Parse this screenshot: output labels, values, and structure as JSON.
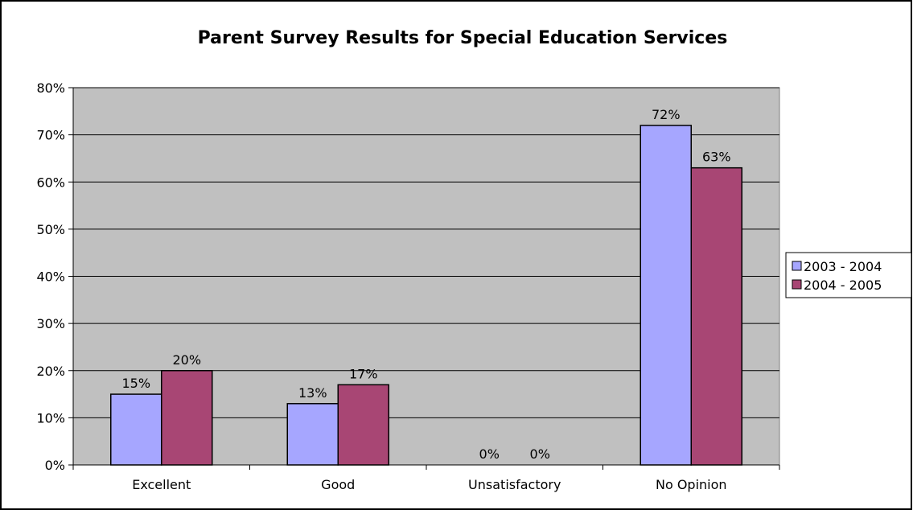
{
  "chart_data": {
    "type": "bar",
    "title": "Parent Survey Results for Special Education Services",
    "xlabel": "",
    "ylabel": "",
    "categories": [
      "Excellent",
      "Good",
      "Unsatisfactory",
      "No Opinion"
    ],
    "series": [
      {
        "name": "2003 - 2004",
        "values": [
          15,
          13,
          0,
          72
        ],
        "color": "#a6a6ff",
        "labels": [
          "15%",
          "13%",
          "0%",
          "72%"
        ]
      },
      {
        "name": "2004 - 2005",
        "values": [
          20,
          17,
          0,
          63
        ],
        "color": "#a84674",
        "labels": [
          "20%",
          "17%",
          "0%",
          "63%"
        ]
      }
    ],
    "ylim": [
      0,
      80
    ],
    "yticks": [
      0,
      10,
      20,
      30,
      40,
      50,
      60,
      70,
      80
    ],
    "ytick_labels": [
      "0%",
      "10%",
      "20%",
      "30%",
      "40%",
      "50%",
      "60%",
      "70%",
      "80%"
    ],
    "grid": true,
    "legend": "right",
    "plot_background": "#c0c0c0"
  }
}
